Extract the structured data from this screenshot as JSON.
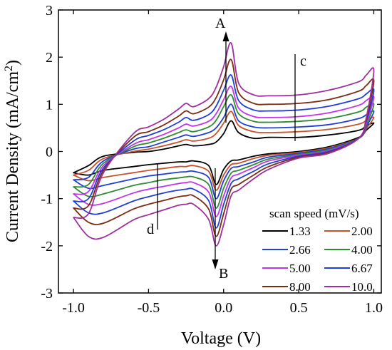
{
  "chart_data": {
    "type": "line",
    "xlabel": "Voltage (V)",
    "ylabel_main": "Current Density (mA/cm",
    "ylabel_sup": "2",
    "ylabel_close": ")",
    "xlim": [
      -1.1,
      1.05
    ],
    "ylim": [
      -3,
      3
    ],
    "xticks": [
      -1.0,
      -0.5,
      0.0,
      0.5,
      1.0
    ],
    "xtick_labels": [
      "-1.0",
      "-0.5",
      "0.0",
      "0.5",
      "1.0"
    ],
    "yticks": [
      -3,
      -2,
      -1,
      0,
      1,
      2,
      3
    ],
    "ytick_labels": [
      "-3",
      "-2",
      "-1",
      "0",
      "1",
      "2",
      "3"
    ],
    "grid": false,
    "legend_title": "scan speed (mV/s)",
    "legend_position": "bottom-right",
    "annotations": {
      "A": "A",
      "B": "B",
      "c": "c",
      "d": "d"
    },
    "x": [
      -1.0,
      -0.9,
      -0.8,
      -0.6,
      -0.5,
      -0.4,
      -0.3,
      -0.25,
      -0.2,
      -0.1,
      -0.05,
      0.0,
      0.05,
      0.1,
      0.2,
      0.3,
      0.5,
      0.7,
      0.9,
      0.95,
      1.0
    ],
    "series": [
      {
        "name": "1.33",
        "color": "#000000",
        "anodic": [
          -0.45,
          -0.3,
          -0.1,
          -0.02,
          0.0,
          0.05,
          0.12,
          0.15,
          0.12,
          0.15,
          0.2,
          0.38,
          0.65,
          0.4,
          0.28,
          0.3,
          0.3,
          0.35,
          0.45,
          0.55,
          0.6
        ],
        "cathodic": [
          -0.45,
          -0.5,
          -0.4,
          -0.32,
          -0.28,
          -0.25,
          -0.22,
          -0.22,
          -0.2,
          -0.3,
          -0.7,
          -0.38,
          -0.2,
          -0.18,
          -0.1,
          -0.05,
          0.0,
          0.1,
          0.3,
          0.45,
          0.6
        ]
      },
      {
        "name": "2.00",
        "color": "#c8532b",
        "anodic": [
          -0.5,
          -0.4,
          -0.15,
          0.0,
          0.05,
          0.12,
          0.2,
          0.25,
          0.22,
          0.28,
          0.38,
          0.6,
          0.85,
          0.55,
          0.42,
          0.4,
          0.42,
          0.47,
          0.58,
          0.66,
          0.72
        ],
        "cathodic": [
          -0.5,
          -0.62,
          -0.55,
          -0.45,
          -0.4,
          -0.36,
          -0.32,
          -0.32,
          -0.3,
          -0.42,
          -0.82,
          -0.5,
          -0.28,
          -0.25,
          -0.15,
          -0.08,
          -0.02,
          0.08,
          0.28,
          0.48,
          0.72
        ]
      },
      {
        "name": "2.66",
        "color": "#1f3fd8",
        "anodic": [
          -0.6,
          -0.55,
          -0.2,
          0.05,
          0.1,
          0.2,
          0.3,
          0.35,
          0.32,
          0.4,
          0.5,
          0.72,
          1.0,
          0.65,
          0.52,
          0.5,
          0.52,
          0.57,
          0.7,
          0.78,
          0.85
        ],
        "cathodic": [
          -0.6,
          -0.78,
          -0.72,
          -0.58,
          -0.52,
          -0.48,
          -0.44,
          -0.43,
          -0.42,
          -0.55,
          -1.0,
          -0.62,
          -0.36,
          -0.32,
          -0.22,
          -0.12,
          -0.04,
          0.06,
          0.28,
          0.52,
          0.85
        ]
      },
      {
        "name": "4.00",
        "color": "#2e8b2e",
        "anodic": [
          -0.75,
          -0.7,
          -0.25,
          0.1,
          0.18,
          0.28,
          0.4,
          0.46,
          0.42,
          0.52,
          0.66,
          0.95,
          1.2,
          0.8,
          0.64,
          0.62,
          0.64,
          0.7,
          0.84,
          0.94,
          1.0
        ],
        "cathodic": [
          -0.75,
          -0.95,
          -0.9,
          -0.72,
          -0.66,
          -0.6,
          -0.56,
          -0.54,
          -0.54,
          -0.7,
          -1.2,
          -0.78,
          -0.46,
          -0.4,
          -0.28,
          -0.16,
          -0.06,
          0.04,
          0.28,
          0.56,
          1.0
        ]
      },
      {
        "name": "5.00",
        "color": "#c234ec",
        "anodic": [
          -0.9,
          -0.85,
          -0.3,
          0.15,
          0.25,
          0.36,
          0.5,
          0.58,
          0.54,
          0.64,
          0.8,
          1.1,
          1.38,
          0.92,
          0.74,
          0.72,
          0.74,
          0.82,
          0.98,
          1.08,
          1.15
        ],
        "cathodic": [
          -0.9,
          -1.12,
          -1.1,
          -0.88,
          -0.8,
          -0.74,
          -0.68,
          -0.66,
          -0.66,
          -0.86,
          -1.38,
          -0.94,
          -0.56,
          -0.48,
          -0.34,
          -0.2,
          -0.08,
          0.02,
          0.28,
          0.6,
          1.15
        ]
      },
      {
        "name": "6.67",
        "color": "#1f3fd8",
        "anodic": [
          -1.05,
          -1.0,
          -0.35,
          0.22,
          0.34,
          0.46,
          0.62,
          0.72,
          0.66,
          0.78,
          0.96,
          1.3,
          1.62,
          1.08,
          0.88,
          0.86,
          0.88,
          0.96,
          1.12,
          1.22,
          1.3
        ],
        "cathodic": [
          -1.05,
          -1.3,
          -1.3,
          -1.05,
          -0.96,
          -0.88,
          -0.82,
          -0.8,
          -0.8,
          -1.04,
          -1.62,
          -1.12,
          -0.68,
          -0.58,
          -0.42,
          -0.26,
          -0.1,
          0.0,
          0.28,
          0.64,
          1.3
        ]
      },
      {
        "name": "8.00",
        "color": "#7a2d12",
        "anodic": [
          -1.2,
          -1.15,
          -0.4,
          0.3,
          0.42,
          0.56,
          0.75,
          0.86,
          0.8,
          0.94,
          1.14,
          1.52,
          1.95,
          1.25,
          1.02,
          1.0,
          1.02,
          1.1,
          1.28,
          1.4,
          1.5
        ],
        "cathodic": [
          -1.2,
          -1.5,
          -1.52,
          -1.22,
          -1.12,
          -1.04,
          -0.96,
          -0.94,
          -0.94,
          -1.22,
          -1.8,
          -1.32,
          -0.8,
          -0.7,
          -0.5,
          -0.32,
          -0.12,
          -0.02,
          0.28,
          0.68,
          1.5
        ]
      },
      {
        "name": "10.0",
        "color": "#a02fa0",
        "anodic": [
          -1.4,
          -1.32,
          -0.45,
          0.38,
          0.52,
          0.68,
          0.9,
          1.02,
          0.95,
          1.12,
          1.36,
          1.8,
          2.3,
          1.45,
          1.2,
          1.18,
          1.2,
          1.3,
          1.48,
          1.62,
          1.72
        ],
        "cathodic": [
          -1.4,
          -1.8,
          -1.82,
          -1.45,
          -1.34,
          -1.24,
          -1.14,
          -1.12,
          -1.12,
          -1.44,
          -2.0,
          -1.55,
          -0.94,
          -0.82,
          -0.58,
          -0.38,
          -0.14,
          -0.04,
          0.28,
          0.72,
          1.72
        ]
      }
    ]
  }
}
